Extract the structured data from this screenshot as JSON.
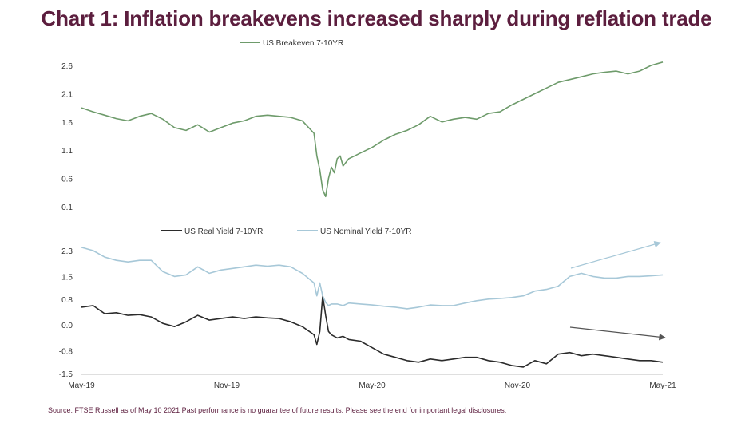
{
  "title": "Chart 1: Inflation breakevens increased sharply during reflation trade",
  "footer": "Source: FTSE Russell as of May 10 2021 Past performance is no guarantee of future results. Please see the end for important legal disclosures.",
  "colors": {
    "title": "#5c1e3e",
    "breakeven": "#6e9b6b",
    "real": "#2b2b2b",
    "nominal": "#a7c8d8",
    "axis": "#bfbfbf"
  },
  "chart_data": [
    {
      "type": "line",
      "title": "",
      "ylim": [
        0.1,
        2.6
      ],
      "yticks": [
        "0.1",
        "0.6",
        "1.1",
        "1.6",
        "2.1",
        "2.6"
      ],
      "grid": false,
      "legend": "top-left",
      "series": [
        {
          "name": "US Breakeven 7-10YR",
          "x": [
            0,
            0.02,
            0.04,
            0.06,
            0.08,
            0.1,
            0.12,
            0.14,
            0.16,
            0.18,
            0.2,
            0.22,
            0.24,
            0.26,
            0.28,
            0.3,
            0.32,
            0.34,
            0.36,
            0.38,
            0.4,
            0.405,
            0.41,
            0.415,
            0.42,
            0.425,
            0.43,
            0.435,
            0.44,
            0.445,
            0.45,
            0.46,
            0.47,
            0.48,
            0.5,
            0.52,
            0.54,
            0.56,
            0.58,
            0.6,
            0.62,
            0.64,
            0.66,
            0.68,
            0.7,
            0.72,
            0.74,
            0.76,
            0.78,
            0.8,
            0.82,
            0.84,
            0.86,
            0.88,
            0.9,
            0.92,
            0.94,
            0.96,
            0.98,
            1.0
          ],
          "values": [
            1.85,
            1.78,
            1.72,
            1.66,
            1.62,
            1.7,
            1.75,
            1.65,
            1.5,
            1.45,
            1.55,
            1.42,
            1.5,
            1.58,
            1.62,
            1.7,
            1.72,
            1.7,
            1.68,
            1.62,
            1.4,
            1.0,
            0.75,
            0.4,
            0.28,
            0.6,
            0.8,
            0.7,
            0.95,
            1.0,
            0.82,
            0.95,
            1.0,
            1.05,
            1.15,
            1.28,
            1.38,
            1.45,
            1.55,
            1.7,
            1.6,
            1.65,
            1.68,
            1.65,
            1.75,
            1.78,
            1.9,
            2.0,
            2.1,
            2.2,
            2.3,
            2.35,
            2.4,
            2.45,
            2.48,
            2.5,
            2.45,
            2.5,
            2.6,
            2.66
          ]
        }
      ]
    },
    {
      "type": "line",
      "title": "",
      "ylim": [
        -1.5,
        2.3
      ],
      "yticks": [
        "-1.5",
        "-0.8",
        "0.0",
        "0.8",
        "1.5",
        "2.3"
      ],
      "categories": [
        "May-19",
        "Nov-19",
        "May-20",
        "Nov-20",
        "May-21"
      ],
      "grid": false,
      "legend": "top-left",
      "annotations": [
        "upward arrow above nominal yield",
        "downward arrow above real yield"
      ],
      "series": [
        {
          "name": "US Real Yield 7-10YR",
          "x": [
            0,
            0.02,
            0.04,
            0.06,
            0.08,
            0.1,
            0.12,
            0.14,
            0.16,
            0.18,
            0.2,
            0.22,
            0.24,
            0.26,
            0.28,
            0.3,
            0.32,
            0.34,
            0.36,
            0.38,
            0.4,
            0.405,
            0.41,
            0.415,
            0.42,
            0.425,
            0.43,
            0.44,
            0.45,
            0.46,
            0.48,
            0.5,
            0.52,
            0.54,
            0.56,
            0.58,
            0.6,
            0.62,
            0.64,
            0.66,
            0.68,
            0.7,
            0.72,
            0.74,
            0.76,
            0.78,
            0.8,
            0.82,
            0.84,
            0.86,
            0.88,
            0.9,
            0.92,
            0.94,
            0.96,
            0.98,
            1.0
          ],
          "values": [
            0.55,
            0.6,
            0.35,
            0.38,
            0.3,
            0.32,
            0.25,
            0.05,
            -0.05,
            0.1,
            0.3,
            0.15,
            0.2,
            0.25,
            0.2,
            0.25,
            0.22,
            0.2,
            0.1,
            -0.05,
            -0.3,
            -0.6,
            -0.2,
            0.9,
            0.3,
            -0.2,
            -0.3,
            -0.4,
            -0.35,
            -0.45,
            -0.5,
            -0.7,
            -0.9,
            -1.0,
            -1.1,
            -1.15,
            -1.05,
            -1.1,
            -1.05,
            -1.0,
            -1.0,
            -1.1,
            -1.15,
            -1.25,
            -1.3,
            -1.1,
            -1.2,
            -0.9,
            -0.85,
            -0.95,
            -0.9,
            -0.95,
            -1.0,
            -1.05,
            -1.1,
            -1.1,
            -1.15
          ]
        },
        {
          "name": "US Nominal Yield 7-10YR",
          "x": [
            0,
            0.02,
            0.04,
            0.06,
            0.08,
            0.1,
            0.12,
            0.14,
            0.16,
            0.18,
            0.2,
            0.22,
            0.24,
            0.26,
            0.28,
            0.3,
            0.32,
            0.34,
            0.36,
            0.38,
            0.4,
            0.405,
            0.41,
            0.415,
            0.42,
            0.425,
            0.43,
            0.44,
            0.45,
            0.46,
            0.48,
            0.5,
            0.52,
            0.54,
            0.56,
            0.58,
            0.6,
            0.62,
            0.64,
            0.66,
            0.68,
            0.7,
            0.72,
            0.74,
            0.76,
            0.78,
            0.8,
            0.82,
            0.84,
            0.86,
            0.88,
            0.9,
            0.92,
            0.94,
            0.96,
            0.98,
            1.0
          ],
          "values": [
            2.4,
            2.3,
            2.1,
            2.0,
            1.95,
            2.0,
            2.0,
            1.65,
            1.5,
            1.55,
            1.8,
            1.6,
            1.7,
            1.75,
            1.8,
            1.85,
            1.82,
            1.85,
            1.8,
            1.6,
            1.3,
            0.9,
            1.3,
            0.9,
            0.7,
            0.6,
            0.65,
            0.65,
            0.6,
            0.68,
            0.65,
            0.62,
            0.58,
            0.55,
            0.5,
            0.55,
            0.62,
            0.6,
            0.6,
            0.68,
            0.75,
            0.8,
            0.82,
            0.85,
            0.9,
            1.05,
            1.1,
            1.2,
            1.5,
            1.6,
            1.5,
            1.45,
            1.45,
            1.5,
            1.5,
            1.52,
            1.55
          ]
        }
      ]
    }
  ]
}
